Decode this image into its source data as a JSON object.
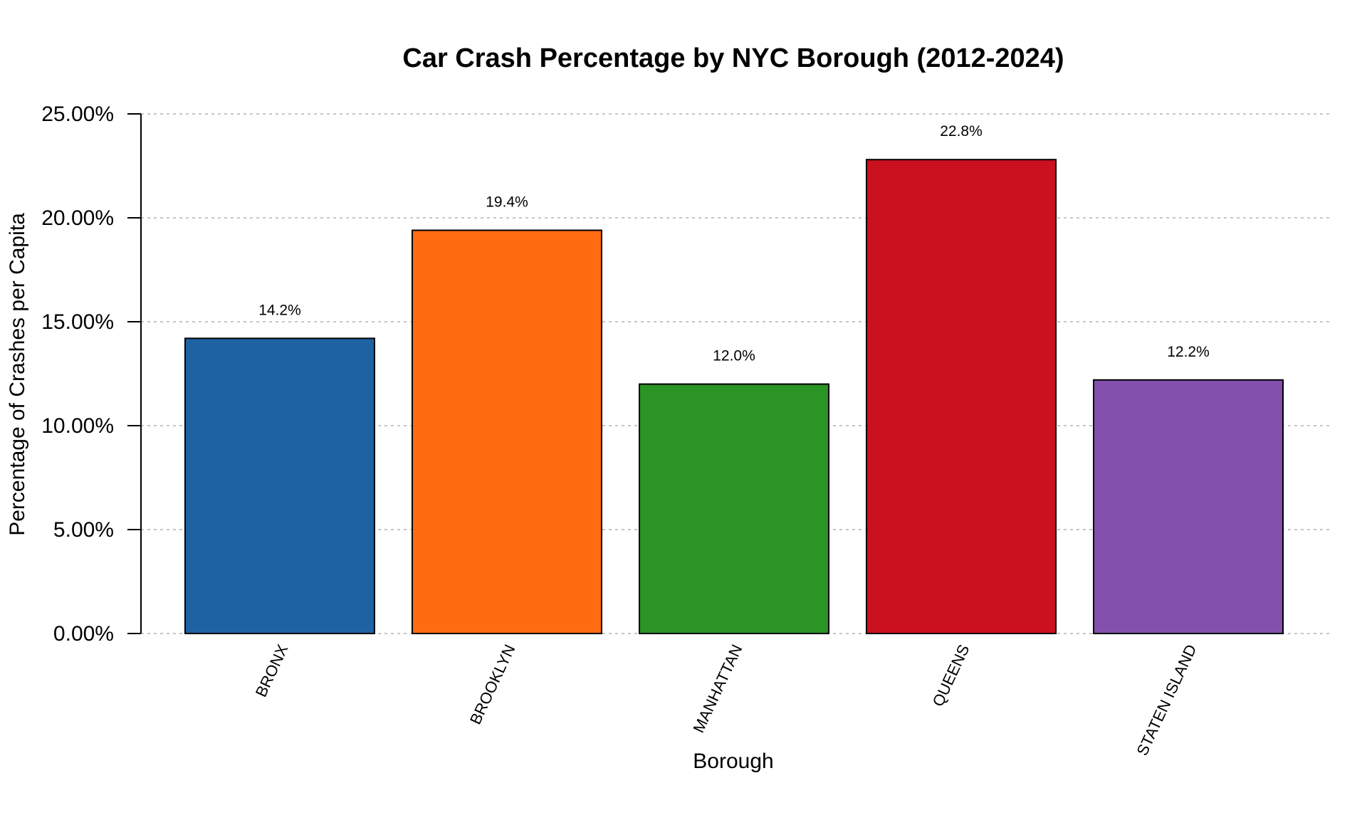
{
  "chart_data": {
    "type": "bar",
    "title": "Car Crash Percentage by NYC Borough (2012-2024)",
    "xlabel": "Borough",
    "ylabel": "Percentage of Crashes per Capita",
    "categories": [
      "BRONX",
      "BROOKLYN",
      "MANHATTAN",
      "QUEENS",
      "STATEN ISLAND"
    ],
    "values": [
      14.2,
      19.4,
      12.0,
      22.8,
      12.2
    ],
    "data_labels": [
      "14.2%",
      "19.4%",
      "12.0%",
      "22.8%",
      "12.2%"
    ],
    "colors": [
      "#1f62a4",
      "#ff6b11",
      "#2a9424",
      "#cb111f",
      "#8350ad"
    ],
    "ylim": [
      0,
      25
    ],
    "yticks": [
      0,
      5,
      10,
      15,
      20,
      25
    ],
    "ytick_labels": [
      "0.00%",
      "5.00%",
      "10.00%",
      "15.00%",
      "20.00%",
      "25.00%"
    ],
    "grid": true,
    "legend": "none"
  }
}
